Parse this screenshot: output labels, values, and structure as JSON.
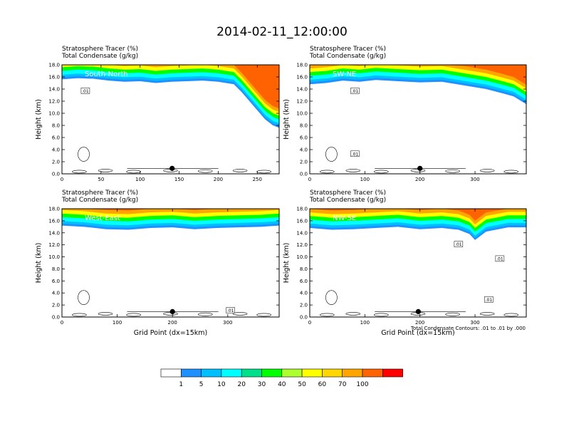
{
  "figure": {
    "title": "2014-02-11_12:00:00",
    "footnote": "Total Condensate Contours: .01 to .01 by .000"
  },
  "colorbar": {
    "labels": [
      "1",
      "5",
      "10",
      "20",
      "30",
      "40",
      "50",
      "60",
      "70",
      "100"
    ],
    "colors": [
      "#ffffff",
      "#1e90ff",
      "#00bfff",
      "#00ffff",
      "#00e08a",
      "#00ff00",
      "#adff2f",
      "#ffff00",
      "#ffd700",
      "#ffa500",
      "#ff6200",
      "#ff0000"
    ]
  },
  "chart_data": [
    {
      "type": "contour",
      "field_label": "Stratosphere Tracer   (%)",
      "contour_label": "Total Condensate   (g/kg)",
      "region": "South-North",
      "xlabel": "",
      "ylabel": "Height (km)",
      "xlim": [
        0,
        278
      ],
      "ylim": [
        0,
        18
      ],
      "xticks": [
        0,
        50,
        100,
        150,
        200,
        250
      ],
      "yticks": [
        "0.0",
        "2.0",
        "4.0",
        "6.0",
        "8.0",
        "10.0",
        "12.0",
        "14.0",
        "16.0",
        "18.0"
      ],
      "tracer_base_km": [
        [
          0,
          15.6
        ],
        [
          20,
          15.8
        ],
        [
          40,
          15.7
        ],
        [
          60,
          15.4
        ],
        [
          80,
          15.2
        ],
        [
          100,
          15.3
        ],
        [
          120,
          15.0
        ],
        [
          140,
          15.2
        ],
        [
          160,
          15.3
        ],
        [
          180,
          15.4
        ],
        [
          200,
          15.2
        ],
        [
          220,
          14.8
        ],
        [
          230,
          13.5
        ],
        [
          240,
          12.0
        ],
        [
          250,
          10.5
        ],
        [
          260,
          9.0
        ],
        [
          270,
          8.0
        ],
        [
          278,
          7.6
        ]
      ],
      "station_marker": {
        "x": 141,
        "y_km": 0.9
      },
      "contour_value_labels": [
        {
          "text": ".01",
          "x": 30,
          "y_km": 13.6
        }
      ]
    },
    {
      "type": "contour",
      "field_label": "Stratosphere Tracer   (%)",
      "contour_label": "Total Condensate   (g/kg)",
      "region": "SW-NE",
      "xlabel": "",
      "ylabel": "Height (km)",
      "xlim": [
        0,
        393
      ],
      "ylim": [
        0,
        18
      ],
      "xticks": [
        0,
        100,
        200,
        300
      ],
      "yticks": [
        "0.0",
        "2.0",
        "4.0",
        "6.0",
        "8.0",
        "10.0",
        "12.0",
        "14.0",
        "16.0",
        "18.0"
      ],
      "tracer_base_km": [
        [
          0,
          14.8
        ],
        [
          30,
          15.0
        ],
        [
          60,
          15.4
        ],
        [
          90,
          15.2
        ],
        [
          120,
          15.5
        ],
        [
          160,
          15.3
        ],
        [
          200,
          15.1
        ],
        [
          240,
          15.2
        ],
        [
          280,
          14.6
        ],
        [
          320,
          14.0
        ],
        [
          350,
          13.3
        ],
        [
          370,
          12.8
        ],
        [
          393,
          11.5
        ]
      ],
      "station_marker": {
        "x": 200,
        "y_km": 0.9
      },
      "contour_value_labels": [
        {
          "text": ".01",
          "x": 82,
          "y_km": 13.6
        },
        {
          "text": ".01",
          "x": 82,
          "y_km": 3.2
        }
      ]
    },
    {
      "type": "contour",
      "field_label": "Stratosphere Tracer   (%)",
      "contour_label": "Total Condensate   (g/kg)",
      "region": "West-East",
      "xlabel": "Grid Point (dx=15km)",
      "ylabel": "Height (km)",
      "xlim": [
        0,
        393
      ],
      "ylim": [
        0,
        18
      ],
      "xticks": [
        0,
        100,
        200,
        300
      ],
      "yticks": [
        "0.0",
        "2.0",
        "4.0",
        "6.0",
        "8.0",
        "10.0",
        "12.0",
        "14.0",
        "16.0",
        "18.0"
      ],
      "tracer_base_km": [
        [
          0,
          15.2
        ],
        [
          40,
          15.0
        ],
        [
          80,
          14.6
        ],
        [
          120,
          14.5
        ],
        [
          160,
          14.8
        ],
        [
          200,
          14.9
        ],
        [
          240,
          14.6
        ],
        [
          280,
          14.8
        ],
        [
          320,
          14.9
        ],
        [
          360,
          15.0
        ],
        [
          393,
          15.2
        ]
      ],
      "station_marker": {
        "x": 200,
        "y_km": 0.9
      },
      "contour_value_labels": [
        {
          "text": ".01",
          "x": 305,
          "y_km": 1.0
        }
      ]
    },
    {
      "type": "contour",
      "field_label": "Stratosphere Tracer   (%)",
      "contour_label": "Total Condensate   (g/kg)",
      "region": "NW-SE",
      "xlabel": "Grid Point (dx=15km)",
      "ylabel": "Height (km)",
      "xlim": [
        0,
        393
      ],
      "ylim": [
        0,
        18
      ],
      "xticks": [
        0,
        100,
        200,
        300
      ],
      "yticks": [
        "0.0",
        "2.0",
        "4.0",
        "6.0",
        "8.0",
        "10.0",
        "12.0",
        "14.0",
        "16.0",
        "18.0"
      ],
      "tracer_base_km": [
        [
          0,
          14.8
        ],
        [
          40,
          14.5
        ],
        [
          80,
          14.6
        ],
        [
          120,
          14.8
        ],
        [
          160,
          15.0
        ],
        [
          200,
          14.6
        ],
        [
          240,
          14.8
        ],
        [
          270,
          14.5
        ],
        [
          290,
          13.8
        ],
        [
          300,
          12.8
        ],
        [
          320,
          14.2
        ],
        [
          360,
          14.9
        ],
        [
          393,
          14.9
        ]
      ],
      "station_marker": {
        "x": 197,
        "y_km": 0.9
      },
      "contour_value_labels": [
        {
          "text": ".01",
          "x": 270,
          "y_km": 12.0
        },
        {
          "text": ".01",
          "x": 345,
          "y_km": 9.6
        },
        {
          "text": ".01",
          "x": 325,
          "y_km": 2.8
        }
      ]
    }
  ]
}
